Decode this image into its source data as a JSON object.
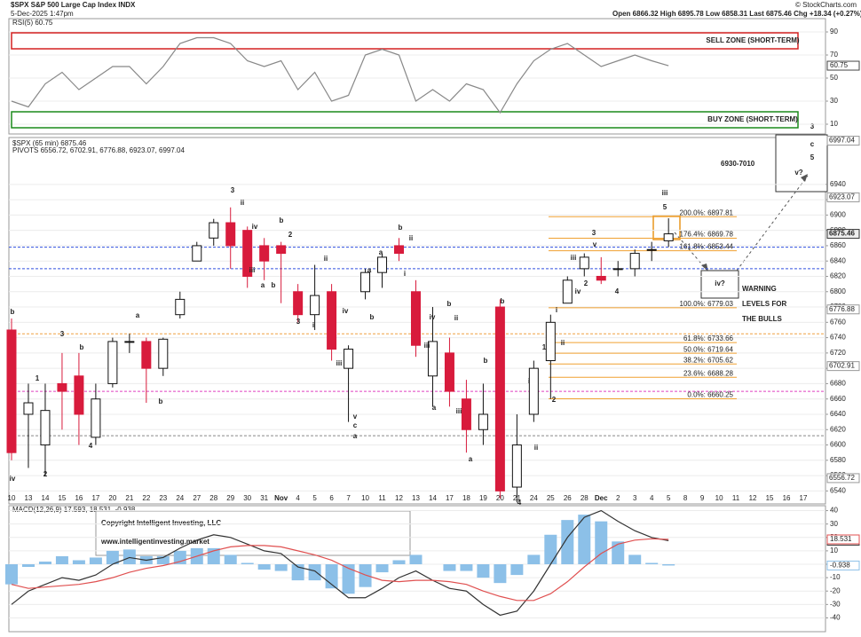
{
  "header": {
    "symbol": "$SPX S&P 500 Large Cap Index INDX",
    "timestamp": "5-Dec-2025 1:47pm",
    "quote": "Open 6866.32  High 6895.78  Low 6858.31  Last 6875.46  Chg +18.34 (+0.27%)",
    "credit": "© StockCharts.com"
  },
  "chart_data": [
    {
      "type": "line",
      "legend": "RSI(5) 60.75",
      "last_label": "60.75",
      "color": "#888888",
      "values": [
        30,
        25,
        45,
        55,
        40,
        50,
        60,
        60,
        45,
        60,
        80,
        85,
        85,
        80,
        65,
        60,
        65,
        40,
        55,
        30,
        35,
        70,
        75,
        70,
        30,
        40,
        30,
        45,
        40,
        20,
        45,
        65,
        75,
        80,
        70,
        60,
        65,
        70,
        65,
        60.75,
        null,
        null,
        null,
        null,
        null,
        null,
        null,
        null
      ],
      "ylim": [
        0,
        100
      ],
      "yticks": [
        10,
        30,
        50,
        70,
        90
      ],
      "grid": true,
      "zones": [
        {
          "label": "SELL ZONE (SHORT-TERM)",
          "color": "#d42020"
        },
        {
          "label": "BUY ZONE (SHORT-TERM)",
          "color": "#1a8a1a"
        }
      ]
    },
    {
      "type": "candlestick",
      "legend": "$SPX (65 min) 6875.46",
      "pivots_legend": "PIVOTS 6556.72, 6702.91, 6776.88, 6923.07, 6997.04",
      "categories": [
        "10",
        "13",
        "14",
        "15",
        "16",
        "17",
        "20",
        "21",
        "22",
        "23",
        "24",
        "27",
        "28",
        "29",
        "30",
        "31",
        "Nov",
        "4",
        "5",
        "6",
        "7",
        "10",
        "11",
        "12",
        "13",
        "14",
        "17",
        "18",
        "19",
        "20",
        "21",
        "24",
        "25",
        "26",
        "28",
        "Dec",
        "2",
        "3",
        "4",
        "5",
        "8",
        "9",
        "10",
        "11",
        "12",
        "15",
        "16",
        "17"
      ],
      "open": [
        6750,
        6640,
        6600,
        6680,
        6690,
        6610,
        6680,
        6735,
        6735,
        6700,
        6770,
        6840,
        6870,
        6890,
        6880,
        6860,
        6860,
        6800,
        6770,
        6800,
        6700,
        6800,
        6825,
        6860,
        6800,
        6690,
        6720,
        6660,
        6620,
        6780,
        6545,
        6640,
        6710,
        6785,
        6830,
        6820,
        6830,
        6830,
        6855,
        6866.32,
        null,
        null,
        null,
        null,
        null,
        null,
        null,
        null
      ],
      "high": [
        6765,
        6680,
        6680,
        6720,
        6720,
        6680,
        6740,
        6745,
        6740,
        6740,
        6800,
        6865,
        6895,
        6910,
        6885,
        6870,
        6865,
        6810,
        6835,
        6810,
        6730,
        6830,
        6850,
        6870,
        6815,
        6780,
        6740,
        6685,
        6680,
        6790,
        6640,
        6710,
        6770,
        6820,
        6850,
        6845,
        6840,
        6855,
        6865,
        6895.78,
        null,
        null,
        null,
        null,
        null,
        null,
        null,
        null
      ],
      "low": [
        6580,
        6570,
        6560,
        6620,
        6600,
        6600,
        6675,
        6720,
        6655,
        6690,
        6765,
        6840,
        6860,
        6830,
        6805,
        6815,
        6785,
        6760,
        6750,
        6710,
        6630,
        6790,
        6805,
        6840,
        6715,
        6650,
        6650,
        6590,
        6600,
        6530,
        6525,
        6630,
        6660,
        6785,
        6820,
        6810,
        6820,
        6820,
        6840,
        6858.31,
        null,
        null,
        null,
        null,
        null,
        null,
        null,
        null
      ],
      "close": [
        6590,
        6655,
        6645,
        6670,
        6640,
        6660,
        6735,
        6735,
        6700,
        6738,
        6790,
        6860,
        6890,
        6860,
        6820,
        6840,
        6850,
        6770,
        6795,
        6725,
        6725,
        6825,
        6845,
        6850,
        6730,
        6735,
        6670,
        6620,
        6640,
        6540,
        6600,
        6700,
        6760,
        6815,
        6845,
        6815,
        6830,
        6850,
        6855,
        6875.46,
        null,
        null,
        null,
        null,
        null,
        null,
        null,
        null
      ],
      "up_color": "#111111",
      "down_color": "#d81b3c",
      "ylim": [
        6530,
        7000
      ],
      "yticks": [
        6540,
        6560,
        6580,
        6600,
        6620,
        6640,
        6660,
        6680,
        6700,
        6720,
        6740,
        6760,
        6780,
        6800,
        6820,
        6840,
        6860,
        6880,
        6900,
        6920,
        6940
      ],
      "grid": true,
      "pivots": [
        6556.72,
        6702.91,
        6776.88,
        6923.07,
        6997.04
      ],
      "last": 6875.46,
      "levels": [
        {
          "value": 6858,
          "color": "#3050e0"
        },
        {
          "value": 6830,
          "color": "#3050e0"
        },
        {
          "value": 6745,
          "color": "#f0a040"
        },
        {
          "value": 6670,
          "color": "#e040c0"
        },
        {
          "value": 6612,
          "color": "#888888"
        }
      ],
      "fib_levels": [
        {
          "value": 6897.81,
          "label": "200.0%: 6897.81"
        },
        {
          "value": 6869.78,
          "label": "176.4%: 6869.78"
        },
        {
          "value": 6853.44,
          "label": "161.8%: 6853.44"
        },
        {
          "value": 6779.03,
          "label": "100.0%: 6779.03"
        },
        {
          "value": 6733.66,
          "label": "61.8%: 6733.66"
        },
        {
          "value": 6719.64,
          "label": "50.0%: 6719.64"
        },
        {
          "value": 6705.62,
          "label": "38.2%: 6705.62"
        },
        {
          "value": 6688.28,
          "label": "23.6%: 6688.28"
        },
        {
          "value": 6660.25,
          "label": "0.0%: 6660.25"
        }
      ],
      "fib_color": "#f0a030",
      "wave_labels": [
        {
          "text": "3",
          "color": "#2e8b2e"
        },
        {
          "text": "iv",
          "color": "#555555"
        },
        {
          "text": "2",
          "color": "#e8961e"
        },
        {
          "text": "1",
          "color": "#e8961e"
        },
        {
          "text": "3",
          "color": "#e8961e"
        },
        {
          "text": "4",
          "color": "#e8961e"
        },
        {
          "text": "b",
          "color": "#e8961e"
        },
        {
          "text": "a",
          "color": "#1a1ab4"
        },
        {
          "text": "b",
          "color": "#1a1ab4"
        },
        {
          "text": "b",
          "color": "#1a1ab4"
        },
        {
          "text": "b",
          "color": "#e8961e"
        },
        {
          "text": "2",
          "color": "#e020e0"
        },
        {
          "text": "a",
          "color": "#e8961e"
        },
        {
          "text": "b",
          "color": "#1a1ab4"
        },
        {
          "text": "iii",
          "color": "#1a1ab4"
        },
        {
          "text": "iv",
          "color": "#1a1ab4"
        },
        {
          "text": "ii",
          "color": "#1a1ab4"
        },
        {
          "text": "b",
          "color": "#555555"
        },
        {
          "text": "ii",
          "color": "#1a1ab4"
        },
        {
          "text": "a",
          "color": "#1a1ab4"
        },
        {
          "text": "i",
          "color": "#1a1ab4"
        },
        {
          "text": "ii",
          "color": "#1a1ab4"
        },
        {
          "text": "iv",
          "color": "#1a1ab4"
        },
        {
          "text": "iii",
          "color": "#1a1ab4"
        },
        {
          "text": "v",
          "color": "#1a1ab4"
        },
        {
          "text": "c",
          "color": "#e8961e"
        },
        {
          "text": "a",
          "color": "#555555"
        },
        {
          "text": "i",
          "color": "#1a1ab4"
        },
        {
          "text": "3",
          "color": "#e020e0"
        },
        {
          "text": "b",
          "color": "#e8961e"
        },
        {
          "text": "a",
          "color": "#e8961e"
        },
        {
          "text": "iv",
          "color": "#1a1ab4"
        },
        {
          "text": "iii",
          "color": "#1a1ab4"
        },
        {
          "text": "b",
          "color": "#e020e0"
        },
        {
          "text": "ii",
          "color": "#1a1ab4"
        },
        {
          "text": "a",
          "color": "#1a1ab4"
        },
        {
          "text": "a",
          "color": "#e8961e"
        },
        {
          "text": "b",
          "color": "#1a1ab4"
        },
        {
          "text": "iii",
          "color": "#1a1ab4"
        },
        {
          "text": "b",
          "color": "#e8961e"
        },
        {
          "text": "4",
          "color": "#2e8b2e"
        },
        {
          "text": "i",
          "color": "#555555"
        },
        {
          "text": "ii",
          "color": "#555555"
        },
        {
          "text": "2",
          "color": "#e8961e"
        },
        {
          "text": "1",
          "color": "#e8961e"
        },
        {
          "text": "i",
          "color": "#1a1ab4"
        },
        {
          "text": "ii",
          "color": "#1a1ab4"
        },
        {
          "text": "iii",
          "color": "#1a1ab4"
        },
        {
          "text": "iv",
          "color": "#1a1ab4"
        },
        {
          "text": "v",
          "color": "#1a1ab4"
        },
        {
          "text": "3",
          "color": "#e8961e"
        },
        {
          "text": "4",
          "color": "#e8961e"
        },
        {
          "text": "5",
          "color": "#e8961e"
        },
        {
          "text": "iii",
          "color": "#555555"
        },
        {
          "text": "2",
          "color": "#e020e0"
        }
      ],
      "target": {
        "range": "6930-7010",
        "wave3": "3",
        "wavec": "c",
        "wave5": "5",
        "wavev": "v?",
        "waveiv": "iv?"
      },
      "warning": [
        "WARNING",
        "LEVELS FOR",
        "THE BULLS"
      ]
    },
    {
      "type": "macd",
      "legend": "MACD(12,26,9) 17.593, 18.531, -0.938",
      "series": [
        {
          "name": "MACD",
          "color": "#333333",
          "last_label": "17.593",
          "values": [
            -30,
            -20,
            -15,
            -10,
            -12,
            -8,
            0,
            5,
            3,
            5,
            12,
            18,
            22,
            20,
            15,
            10,
            8,
            -2,
            -5,
            -15,
            -25,
            -25,
            -18,
            -10,
            -5,
            -12,
            -18,
            -20,
            -30,
            -38,
            -35,
            -20,
            0,
            20,
            35,
            40,
            32,
            25,
            20,
            17.593,
            null,
            null,
            null,
            null,
            null,
            null,
            null,
            null
          ]
        },
        {
          "name": "Signal",
          "color": "#e05050",
          "last_label": "18.531",
          "values": [
            -15,
            -18,
            -17,
            -16,
            -15,
            -13,
            -10,
            -6,
            -3,
            -1,
            2,
            6,
            10,
            13,
            14,
            14,
            13,
            10,
            7,
            3,
            -3,
            -8,
            -12,
            -13,
            -12,
            -12,
            -13,
            -15,
            -20,
            -24,
            -27,
            -27,
            -22,
            -13,
            -2,
            8,
            15,
            18,
            19,
            18.531,
            null,
            null,
            null,
            null,
            null,
            null,
            null,
            null
          ]
        },
        {
          "name": "Histogram",
          "color": "#8cc0e8",
          "last_label": "-0.938",
          "values": [
            -15,
            -2,
            2,
            6,
            3,
            5,
            10,
            11,
            6,
            6,
            10,
            12,
            12,
            7,
            1,
            -4,
            -5,
            -12,
            -12,
            -18,
            -22,
            -17,
            -6,
            3,
            7,
            0,
            -5,
            -5,
            -10,
            -14,
            -8,
            7,
            22,
            33,
            37,
            32,
            17,
            7,
            1,
            -0.938,
            null,
            null,
            null,
            null,
            null,
            null,
            null,
            null
          ]
        }
      ],
      "ylim": [
        -45,
        45
      ],
      "yticks": [
        -40,
        -30,
        -20,
        -10,
        0,
        10,
        20,
        30,
        40
      ],
      "grid": true
    }
  ],
  "copyright": [
    "Copyright Intelligent Investing, LLC",
    "www.intelligentinvesting.market"
  ]
}
